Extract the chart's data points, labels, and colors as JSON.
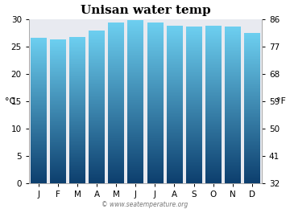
{
  "title": "Unisan water temp",
  "months": [
    "J",
    "F",
    "M",
    "A",
    "M",
    "J",
    "J",
    "A",
    "S",
    "O",
    "N",
    "D"
  ],
  "values_c": [
    26.5,
    26.3,
    26.7,
    27.8,
    29.3,
    29.8,
    29.3,
    28.7,
    28.6,
    28.8,
    28.6,
    27.4
  ],
  "ylim_c": [
    0,
    30
  ],
  "yticks_c": [
    0,
    5,
    10,
    15,
    20,
    25,
    30
  ],
  "yticks_f": [
    32,
    41,
    50,
    59,
    68,
    77,
    86
  ],
  "ylabel_left": "°C",
  "ylabel_right": "°F",
  "bar_color_top": "#6dcff0",
  "bar_color_bottom": "#0d3f6e",
  "plot_bg_color": "#e8eaf0",
  "fig_bg_color": "#ffffff",
  "watermark": "© www.seatemperature.org",
  "title_fontsize": 11,
  "tick_fontsize": 7.5,
  "label_fontsize": 8,
  "bar_width": 0.82
}
